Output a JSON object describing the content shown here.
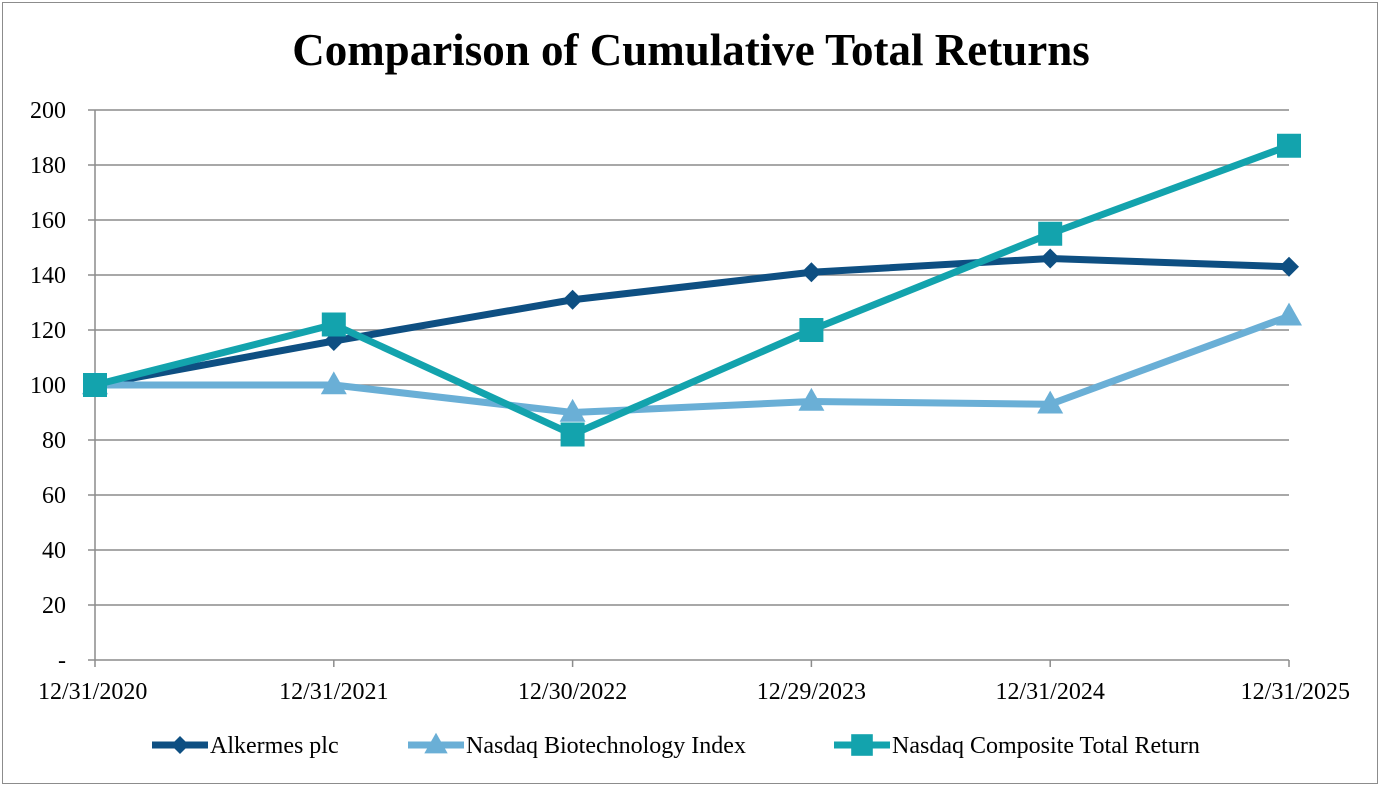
{
  "chart_data": {
    "type": "line",
    "title": "Comparison of Cumulative Total Returns",
    "xlabel": "",
    "ylabel": "",
    "categories": [
      "12/31/2020",
      "12/31/2021",
      "12/30/2022",
      "12/29/2023",
      "12/31/2024",
      "12/31/2025"
    ],
    "ylim": [
      0,
      200
    ],
    "yticks": [
      0,
      20,
      40,
      60,
      80,
      100,
      120,
      140,
      160,
      180,
      200
    ],
    "ytick_labels": [
      "-",
      "20",
      "40",
      "60",
      "80",
      "100",
      "120",
      "140",
      "160",
      "180",
      "200"
    ],
    "grid": true,
    "legend_position": "bottom",
    "series": [
      {
        "name": "Alkermes plc",
        "color": "#0e4f82",
        "marker": "diamond",
        "values": [
          100,
          116,
          131,
          141,
          146,
          143
        ]
      },
      {
        "name": "Nasdaq Biotechnology Index",
        "color": "#6aafd6",
        "marker": "triangle",
        "values": [
          100,
          100,
          90,
          94,
          93,
          125
        ]
      },
      {
        "name": "Nasdaq Composite Total Return",
        "color": "#13a3ad",
        "marker": "square",
        "values": [
          100,
          122,
          82,
          120,
          155,
          187
        ]
      }
    ]
  }
}
